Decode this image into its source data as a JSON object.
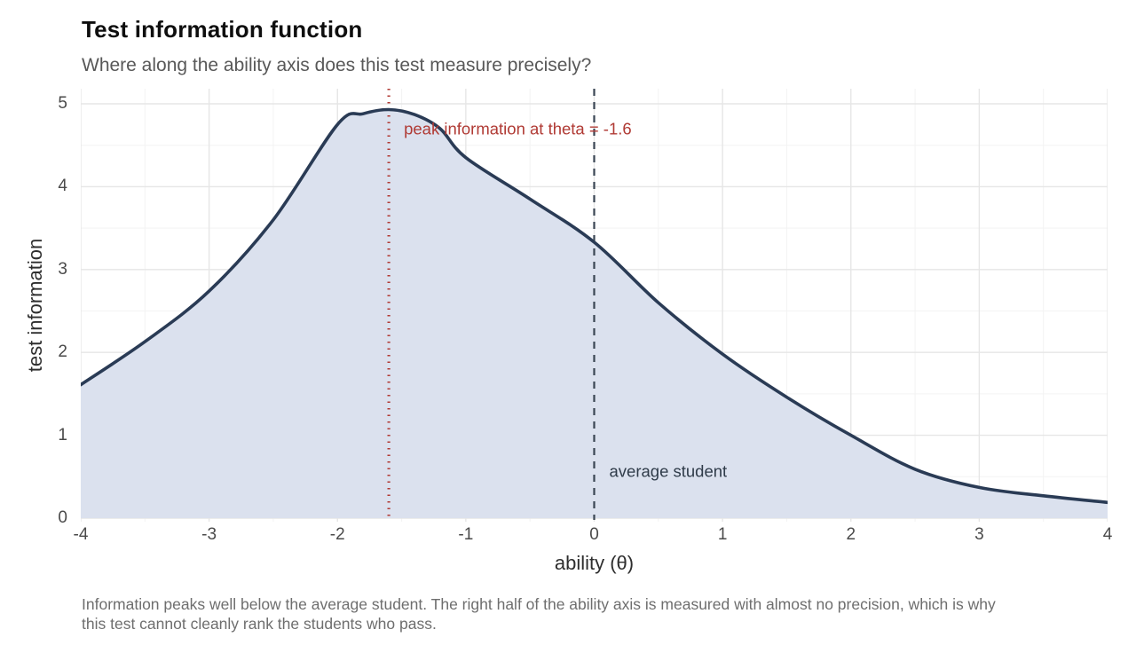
{
  "header": {
    "title": "Test information function",
    "subtitle": "Where along the ability axis does this test measure precisely?"
  },
  "caption": {
    "line1": "Information peaks well below the average student. The right half of the ability axis is measured with almost no precision, which is why",
    "line2": "this test cannot cleanly rank the students who pass."
  },
  "colors": {
    "curve_line": "#2a3b55",
    "area_fill": "#dbe1ee",
    "peak_accent": "#b03a34",
    "average_line": "#3a4553",
    "average_label": "#2f3b49",
    "grid_major": "#e6e6e6",
    "grid_minor": "#f3f3f3"
  },
  "chart_data": {
    "type": "area",
    "title": "Test information function",
    "subtitle": "Where along the ability axis does this test measure precisely?",
    "xlabel": "ability (θ)",
    "ylabel": "test information",
    "xlim": [
      -4,
      4
    ],
    "ylim": [
      0,
      5.18
    ],
    "x_ticks": [
      -4,
      -3,
      -2,
      -1,
      0,
      1,
      2,
      3,
      4
    ],
    "y_ticks": [
      0,
      1,
      2,
      3,
      4,
      5
    ],
    "grid": "major+minor",
    "legend": "none",
    "series": [
      {
        "name": "test information",
        "points": [
          [
            -4,
            1.61
          ],
          [
            -3.5,
            2.13
          ],
          [
            -3,
            2.74
          ],
          [
            -2.5,
            3.6
          ],
          [
            -2,
            4.75
          ],
          [
            -1.8,
            4.88
          ],
          [
            -1.6,
            4.93
          ],
          [
            -1.4,
            4.87
          ],
          [
            -1.2,
            4.7
          ],
          [
            -1,
            4.35
          ],
          [
            -0.5,
            3.85
          ],
          [
            0,
            3.33
          ],
          [
            0.5,
            2.6
          ],
          [
            1,
            1.98
          ],
          [
            1.5,
            1.46
          ],
          [
            2,
            1.0
          ],
          [
            2.5,
            0.59
          ],
          [
            3,
            0.37
          ],
          [
            3.5,
            0.27
          ],
          [
            4,
            0.19
          ]
        ]
      }
    ],
    "annotations": [
      {
        "type": "vline",
        "x": -1.6,
        "line_style": "dotted",
        "color": "#b03a34",
        "label": "peak information at theta = -1.6",
        "label_y": 4.63
      },
      {
        "type": "vline",
        "x": 0,
        "line_style": "dashed",
        "color": "#3a4553",
        "label": "average student",
        "label_y": 0.5
      }
    ]
  }
}
